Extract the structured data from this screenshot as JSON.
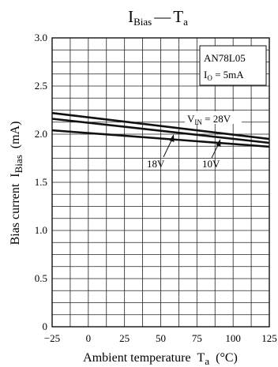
{
  "chart_data": {
    "type": "line",
    "title": {
      "main": "I",
      "main_sub": "Bias",
      "dash": "—",
      "var": "T",
      "var_sub": "a"
    },
    "xlabel": {
      "text": "Ambient temperature",
      "var": "T",
      "var_sub": "a",
      "unit": "(°C)"
    },
    "ylabel": {
      "text": "Bias current",
      "var": "I",
      "var_sub": "Bias",
      "unit": "(mA)"
    },
    "xlim": [
      -25,
      125
    ],
    "ylim": [
      0,
      3.0
    ],
    "xticks": [
      "−25",
      "0",
      "25",
      "50",
      "75",
      "100",
      "125"
    ],
    "yticks": [
      "0",
      "0.5",
      "1.0",
      "1.5",
      "2.0",
      "2.5",
      "3.0"
    ],
    "grid": true,
    "device_box": {
      "line1": "AN78L05",
      "line2_main": "I",
      "line2_sub": "O",
      "line2_rest": " = 5mA"
    },
    "series": [
      {
        "name": "V_IN = 28V",
        "label_main": "V",
        "label_sub": "IN",
        "label_rest": " = 28V",
        "x": [
          -25,
          125
        ],
        "y": [
          2.22,
          1.95
        ]
      },
      {
        "name": "18V",
        "label_main": "18V",
        "x": [
          -25,
          125
        ],
        "y": [
          2.16,
          1.91
        ]
      },
      {
        "name": "10V",
        "label_main": "10V",
        "x": [
          -25,
          125
        ],
        "y": [
          2.04,
          1.87
        ]
      }
    ]
  }
}
